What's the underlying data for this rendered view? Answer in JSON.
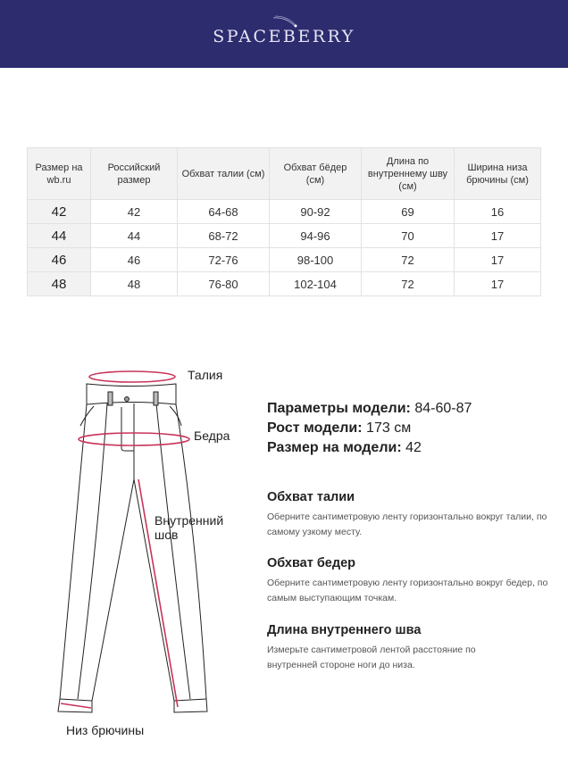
{
  "brand": "SPACEBERRY",
  "table": {
    "headers": [
      "Размер на wb.ru",
      "Российский размер",
      "Обхват талии (см)",
      "Обхват бёдер (см)",
      "Длина по внутреннему шву (см)",
      "Ширина низа брючины (см)"
    ],
    "rows": [
      [
        "42",
        "42",
        "64-68",
        "90-92",
        "69",
        "16"
      ],
      [
        "44",
        "44",
        "68-72",
        "94-96",
        "70",
        "17"
      ],
      [
        "46",
        "46",
        "72-76",
        "98-100",
        "72",
        "17"
      ],
      [
        "48",
        "48",
        "76-80",
        "102-104",
        "72",
        "17"
      ]
    ]
  },
  "diagram": {
    "waist": "Талия",
    "hips": "Бедра",
    "inseam_1": "Внутренний",
    "inseam_2": "шов",
    "hem": "Низ брючины",
    "accent": "#c8345a"
  },
  "model": {
    "params_label": "Параметры модели:",
    "params_value": "84-60-87",
    "height_label": "Рост модели:",
    "height_value": "173 см",
    "size_label": "Размер на модели:",
    "size_value": "42"
  },
  "sections": [
    {
      "title": "Обхват талии",
      "text": "Оберните сантиметровую ленту горизонтально вокруг талии, по самому узкому месту."
    },
    {
      "title": "Обхват бедер",
      "text": "Оберните сантиметровую ленту горизонтально вокруг бедер, по самым выступающим точкам."
    },
    {
      "title": "Длина внутреннего шва",
      "text": "Измерьте сантиметровой лентой расстояние по внутренней стороне ноги до низа."
    }
  ]
}
